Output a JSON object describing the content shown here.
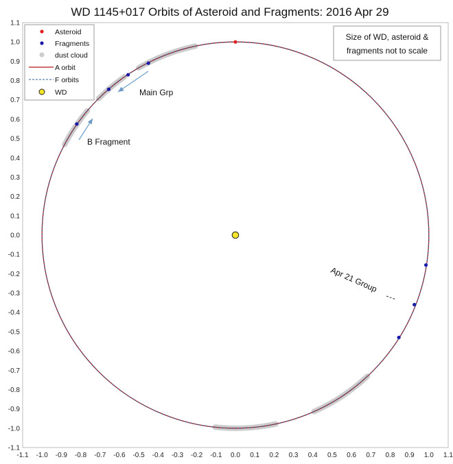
{
  "chart_data": {
    "type": "scatter",
    "title": "WD 1145+017 Orbits of Asteroid and Fragments: 2016 Apr 29",
    "xlabel": "",
    "ylabel": "",
    "xlim": [
      -1.1,
      1.1
    ],
    "ylim": [
      -1.1,
      1.1
    ],
    "ticks": [
      "-1.1",
      "-1.0",
      "-0.9",
      "-0.8",
      "-0.7",
      "-0.6",
      "-0.5",
      "-0.4",
      "-0.3",
      "-0.2",
      "-0.1",
      "0.0",
      "0.1",
      "0.2",
      "0.3",
      "0.4",
      "0.5",
      "0.6",
      "0.7",
      "0.8",
      "0.9",
      "1.0",
      "1.1"
    ],
    "grid": false,
    "legend_position": "top-left",
    "legend": {
      "asteroid": "Asteroid",
      "fragments": "Fragments",
      "dust": "dust cloud",
      "a_orbit": "A orbit",
      "f_orbits": "F orbits",
      "wd": "WD"
    },
    "note_line1": "Size of WD, asteroid &",
    "note_line2": "fragments not to scale",
    "annotations": {
      "main_grp": "Main Grp",
      "b_fragment": "B Fragment",
      "apr21": "Apr 21 Group"
    },
    "asteroid": {
      "x": 0.0,
      "y": 1.0
    },
    "wd": {
      "x": 0.0,
      "y": 0.0
    },
    "fragments": [
      {
        "x": -0.45,
        "y": 0.89
      },
      {
        "x": -0.555,
        "y": 0.83
      },
      {
        "x": -0.655,
        "y": 0.755
      },
      {
        "x": -0.82,
        "y": 0.575
      },
      {
        "x": 0.985,
        "y": -0.155
      },
      {
        "x": 0.925,
        "y": -0.36
      },
      {
        "x": 0.845,
        "y": -0.53
      }
    ],
    "dust_arcs_deg": [
      [
        102,
        120
      ],
      [
        125,
        135
      ],
      [
        140,
        152
      ],
      [
        264,
        282
      ],
      [
        294,
        304
      ],
      [
        302,
        313
      ]
    ],
    "colors": {
      "asteroid": "#e02020",
      "fragments": "#1a1aa8",
      "dust": "#cccccc",
      "a_orbit": "#b01818",
      "f_orbits": "#2f5f9a",
      "wd": "#f5e52a",
      "arrow": "#6c9cc6"
    }
  }
}
